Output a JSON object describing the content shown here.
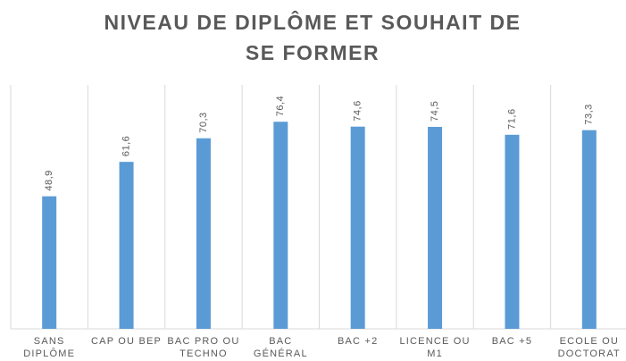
{
  "chart_data": {
    "type": "bar",
    "title": "NIVEAU DE DIPLÔME ET SOUHAIT DE SE FORMER",
    "categories": [
      "SANS DIPLÔME",
      "CAP OU BEP",
      "BAC PRO OU TECHNO",
      "BAC GÉNÉRAL",
      "BAC +2",
      "LICENCE OU M1",
      "BAC +5",
      "ECOLE OU DOCTORAT"
    ],
    "values": [
      48.9,
      61.6,
      70.3,
      76.4,
      74.6,
      74.5,
      71.6,
      73.3
    ],
    "value_labels": [
      "48,9",
      "61,6",
      "70,3",
      "76,4",
      "74,6",
      "74,5",
      "71,6",
      "73,3"
    ],
    "color": "#5b9bd5",
    "ylim": [
      0,
      90
    ]
  }
}
